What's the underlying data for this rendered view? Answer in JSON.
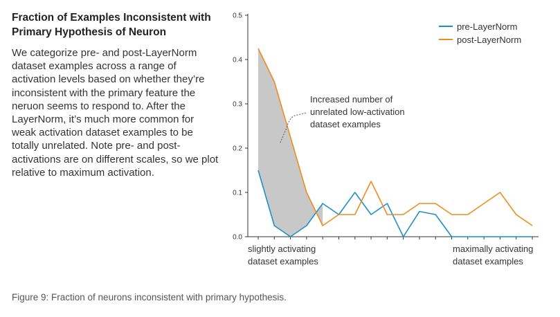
{
  "sidebar": {
    "title_line1": "Fraction of Examples Inconsistent with",
    "title_line2": "Primary Hypothesis of Neuron",
    "body": "We categorize pre- and post-LayerNorm dataset examples across a range of activation levels based on whether they’re inconsistent with the primary feature the neruon seems to respond to. After the LayerNorm, it’s much more common for weak activation dataset examples to be totally unrelated. Note pre- and post- activations are on different scales, so we plot relative to maximum activation."
  },
  "caption": "Figure 9: Fraction of neurons inconsistent with primary hypothesis.",
  "colors": {
    "pre": "#1f8fc9",
    "post": "#f08c1e",
    "shade": "#c8c8c8"
  },
  "chart_data": {
    "type": "line",
    "x": [
      0,
      1,
      2,
      3,
      4,
      5,
      6,
      7,
      8,
      9,
      10,
      11,
      12,
      13,
      14,
      15,
      16,
      17
    ],
    "series": [
      {
        "name": "pre-LayerNorm",
        "values": [
          0.15,
          0.025,
          0.0,
          0.025,
          0.075,
          0.05,
          0.1,
          0.05,
          0.075,
          0.0,
          0.057,
          0.05,
          0.0,
          0.0,
          0.0,
          0.0,
          0.0,
          0.0
        ]
      },
      {
        "name": "post-LayerNorm",
        "values": [
          0.425,
          0.35,
          0.225,
          0.1,
          0.025,
          0.05,
          0.05,
          0.125,
          0.05,
          0.05,
          0.075,
          0.075,
          0.05,
          0.05,
          0.075,
          0.1,
          0.05,
          0.025
        ]
      }
    ],
    "shaded_region": {
      "from_x": 0,
      "to_x": 4,
      "between": [
        "post-LayerNorm",
        "pre-LayerNorm"
      ]
    },
    "ylim": [
      0,
      0.5
    ],
    "yticks": [
      "0.0",
      "0.1",
      "0.2",
      "0.3",
      "0.4",
      "0.5"
    ],
    "x_left_label": [
      "slightly activating",
      "dataset examples"
    ],
    "x_right_label": [
      "maximally activating",
      "dataset examples"
    ],
    "annotation": [
      "Increased number of",
      "unrelated low-activation",
      "dataset examples"
    ],
    "grid": false,
    "legend_position": "top-right"
  }
}
